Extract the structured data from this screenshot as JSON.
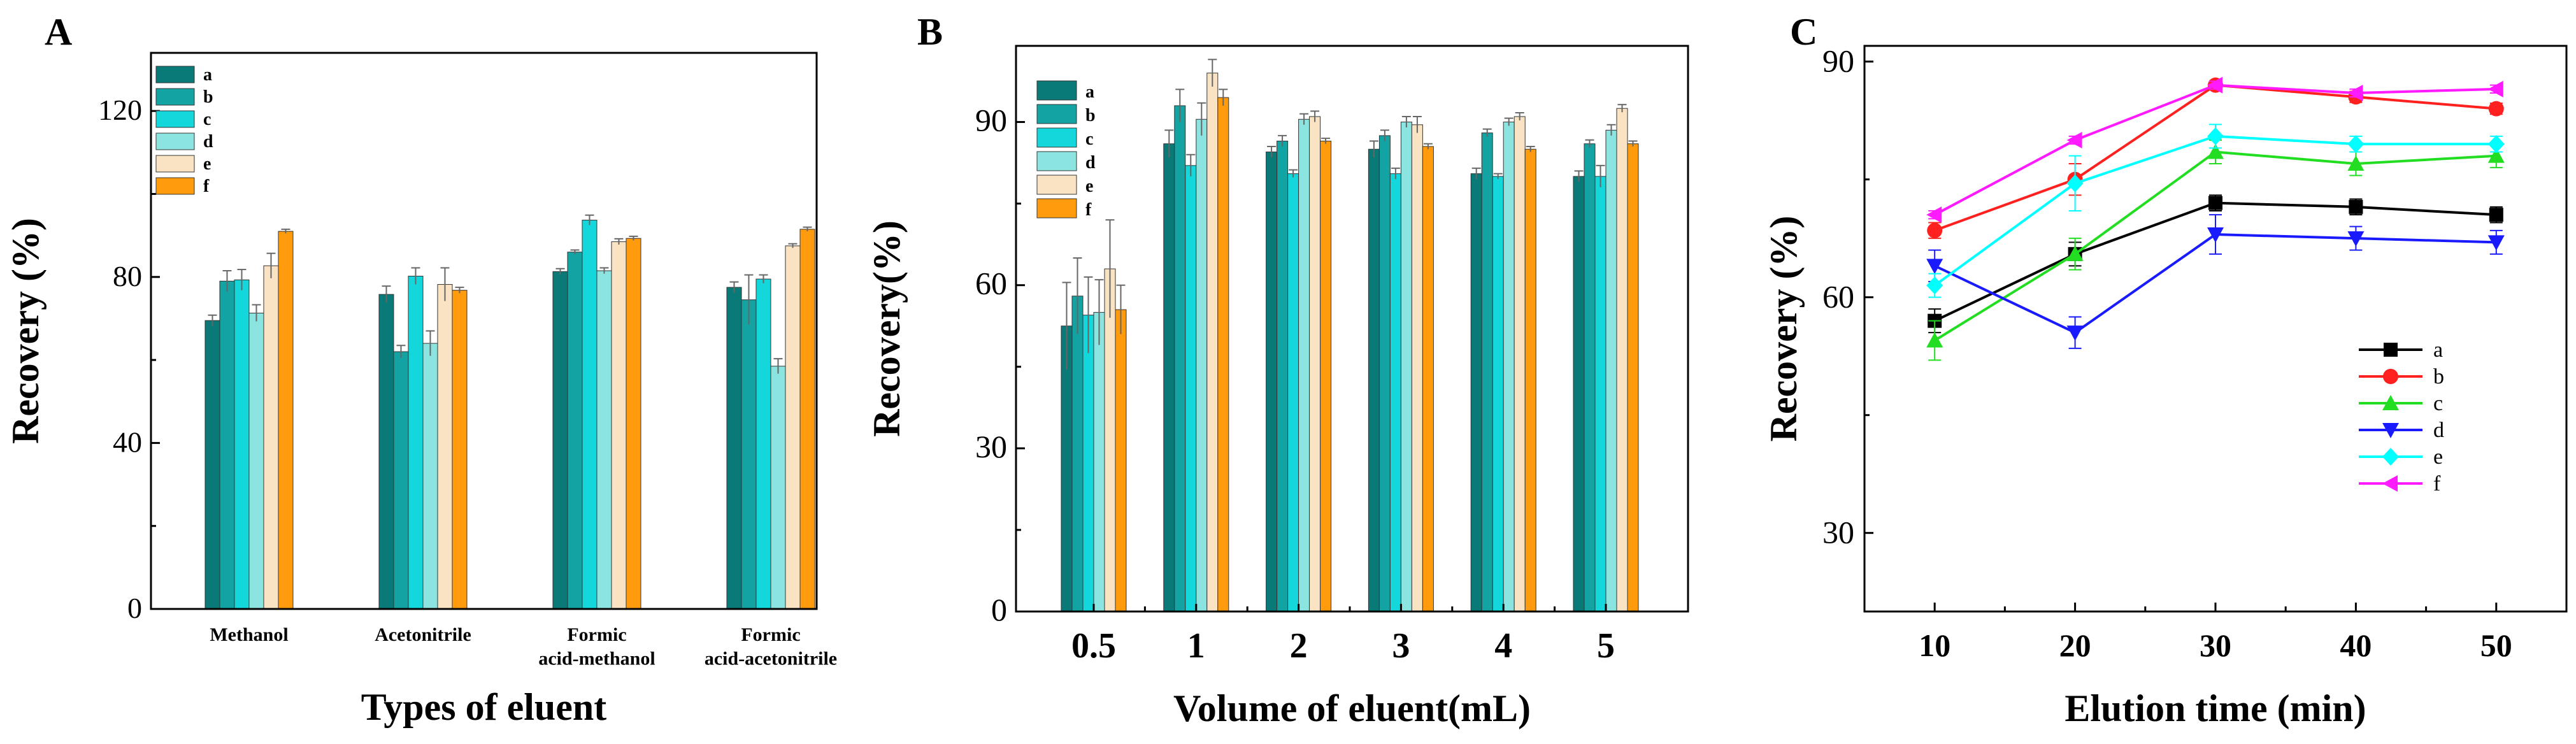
{
  "colors": {
    "a": "#0a7a78",
    "b": "#14a3a3",
    "c": "#14d7dc",
    "d": "#8ce4e0",
    "e": "#f9e3c3",
    "f": "#ff9b0c",
    "line_a": "#000000",
    "line_b": "#ff2020",
    "line_c": "#22dd22",
    "line_d": "#1a1aff",
    "line_e": "#00ffff",
    "line_f": "#ff1aff"
  },
  "panels": {
    "A": {
      "letter": "A"
    },
    "B": {
      "letter": "B"
    },
    "C": {
      "letter": "C"
    }
  },
  "chart_data": [
    {
      "panel": "A",
      "type": "bar",
      "xlabel": "Types of eluent",
      "ylabel": "Recovery (%)",
      "ylim": [
        0,
        134
      ],
      "yticks": [
        0,
        40,
        80,
        120
      ],
      "categories": [
        "Methanol",
        "Acetonitrile",
        "Formic\nacid-methanol",
        "Formic\nacid-acetonitrile"
      ],
      "legend_position": "top-left",
      "series": [
        {
          "name": "a",
          "values": [
            69.5,
            75.8,
            81.3,
            77.5
          ],
          "errors": [
            1.3,
            2.0,
            0.7,
            1.3
          ]
        },
        {
          "name": "b",
          "values": [
            79.0,
            62.0,
            86.0,
            74.5
          ],
          "errors": [
            2.5,
            1.5,
            0.5,
            6.0
          ]
        },
        {
          "name": "c",
          "values": [
            79.3,
            80.2,
            93.7,
            79.5
          ],
          "errors": [
            2.5,
            2.0,
            1.2,
            1.0
          ]
        },
        {
          "name": "d",
          "values": [
            71.3,
            64.0,
            81.5,
            58.5
          ],
          "errors": [
            2.0,
            3.0,
            0.7,
            1.8
          ]
        },
        {
          "name": "e",
          "values": [
            82.7,
            78.2,
            88.5,
            87.5
          ],
          "errors": [
            3.0,
            4.0,
            0.7,
            0.5
          ]
        },
        {
          "name": "f",
          "values": [
            91.0,
            76.8,
            89.3,
            91.5
          ],
          "errors": [
            0.5,
            0.7,
            0.5,
            0.5
          ]
        }
      ]
    },
    {
      "panel": "B",
      "type": "bar",
      "xlabel": "Volume of eluent(mL)",
      "ylabel": "Recovery(%)",
      "ylim": [
        0,
        104
      ],
      "yticks": [
        0,
        30,
        60,
        90
      ],
      "categories": [
        "0.5",
        "1",
        "2",
        "3",
        "4",
        "5"
      ],
      "legend_position": "top-left",
      "series": [
        {
          "name": "a",
          "values": [
            52.5,
            86.0,
            84.5,
            85.0,
            80.5,
            80.0
          ],
          "errors": [
            8.0,
            2.5,
            1.0,
            1.5,
            1.0,
            1.0
          ]
        },
        {
          "name": "b",
          "values": [
            58.0,
            93.0,
            86.5,
            87.5,
            88.0,
            86.0
          ],
          "errors": [
            7.0,
            3.0,
            1.0,
            1.0,
            0.7,
            0.7
          ]
        },
        {
          "name": "c",
          "values": [
            54.5,
            82.0,
            80.5,
            80.5,
            80.0,
            80.0
          ],
          "errors": [
            7.0,
            2.0,
            0.7,
            1.0,
            0.5,
            2.0
          ]
        },
        {
          "name": "d",
          "values": [
            55.0,
            90.5,
            90.5,
            90.0,
            90.0,
            88.5
          ],
          "errors": [
            6.0,
            3.0,
            1.0,
            1.0,
            0.7,
            1.0
          ]
        },
        {
          "name": "e",
          "values": [
            63.0,
            99.0,
            91.0,
            89.5,
            91.0,
            92.5
          ],
          "errors": [
            9.0,
            2.5,
            1.0,
            1.5,
            0.7,
            0.7
          ]
        },
        {
          "name": "f",
          "values": [
            55.5,
            94.5,
            86.5,
            85.5,
            85.0,
            86.0
          ],
          "errors": [
            4.5,
            1.5,
            0.5,
            0.5,
            0.5,
            0.5
          ]
        }
      ]
    },
    {
      "panel": "C",
      "type": "line",
      "xlabel": "Elution time (min)",
      "ylabel": "Recovery (%)",
      "xlim": [
        5,
        55
      ],
      "ylim": [
        20,
        92
      ],
      "xticks": [
        10,
        20,
        30,
        40,
        50
      ],
      "yticks": [
        30,
        60,
        90
      ],
      "x": [
        10,
        20,
        30,
        40,
        50
      ],
      "legend_position": "bottom-right",
      "series": [
        {
          "name": "a",
          "marker": "square",
          "values": [
            57.0,
            65.5,
            72.0,
            71.5,
            70.5
          ],
          "errors": [
            1.5,
            1.5,
            1.0,
            1.0,
            1.0
          ]
        },
        {
          "name": "b",
          "marker": "circle",
          "values": [
            68.5,
            75.0,
            87.0,
            85.5,
            84.0
          ],
          "errors": [
            1.0,
            2.0,
            0.5,
            0.7,
            0.7
          ]
        },
        {
          "name": "c",
          "marker": "triangle-up",
          "values": [
            54.5,
            65.5,
            78.5,
            77.0,
            78.0
          ],
          "errors": [
            2.5,
            2.0,
            1.5,
            1.5,
            1.5
          ]
        },
        {
          "name": "d",
          "marker": "triangle-down",
          "values": [
            64.0,
            55.5,
            68.0,
            67.5,
            67.0
          ],
          "errors": [
            2.0,
            2.0,
            2.5,
            1.5,
            1.5
          ]
        },
        {
          "name": "e",
          "marker": "diamond",
          "values": [
            61.5,
            74.5,
            80.5,
            79.5,
            79.5
          ],
          "errors": [
            1.5,
            3.5,
            1.5,
            1.0,
            1.0
          ]
        },
        {
          "name": "f",
          "marker": "triangle-left",
          "values": [
            70.5,
            80.0,
            87.0,
            86.0,
            86.5
          ],
          "errors": [
            0.5,
            0.5,
            0.5,
            0.5,
            0.5
          ]
        }
      ]
    }
  ]
}
